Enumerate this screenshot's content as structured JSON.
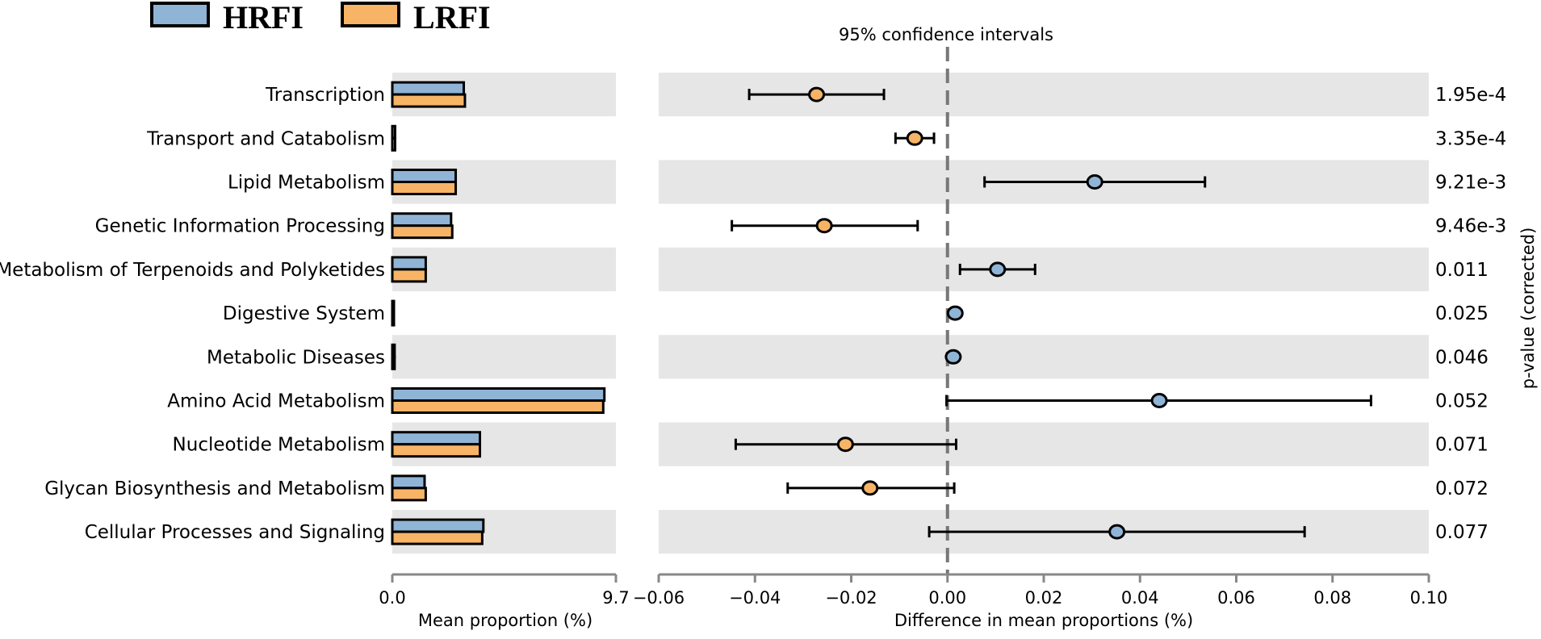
{
  "colors": {
    "hrfi": "#8fb4d6",
    "lrfi": "#f7b466",
    "band": "#e6e6e6",
    "axis": "#888888",
    "dash": "#777777",
    "stroke": "#000000"
  },
  "chart_data": {
    "type": "extended_error_bar",
    "legend": [
      {
        "name": "HRFI",
        "color": "#8fb4d6"
      },
      {
        "name": "LRFI",
        "color": "#f7b466"
      }
    ],
    "categories": [
      "Transcription",
      "Transport and Catabolism",
      "Lipid Metabolism",
      "Genetic Information Processing",
      "Metabolism of Terpenoids and Polyketides",
      "Digestive System",
      "Metabolic Diseases",
      "Amino Acid Metabolism",
      "Nucleotide Metabolism",
      "Glycan Biosynthesis and Metabolism",
      "Cellular Processes and Signaling"
    ],
    "mean_proportion": {
      "title": "Mean proportion (%)",
      "xlim": [
        0,
        9.7
      ],
      "tick_labels": [
        "0.0",
        "9.7"
      ],
      "series": [
        {
          "name": "HRFI",
          "values": [
            3.1,
            0.12,
            2.75,
            2.55,
            1.45,
            0.05,
            0.1,
            9.2,
            3.8,
            1.4,
            3.95
          ]
        },
        {
          "name": "LRFI",
          "values": [
            3.15,
            0.12,
            2.75,
            2.6,
            1.45,
            0.05,
            0.1,
            9.15,
            3.8,
            1.45,
            3.9
          ]
        }
      ]
    },
    "difference": {
      "title": "Difference in mean proportions (%)",
      "header": "95% confidence intervals",
      "xlim": [
        -0.06,
        0.1
      ],
      "ticks": [
        -0.06,
        -0.04,
        -0.02,
        0.0,
        0.02,
        0.04,
        0.06,
        0.08,
        0.1
      ],
      "tick_labels": [
        "−0.06",
        "−0.04",
        "−0.02",
        "0.00",
        "0.02",
        "0.04",
        "0.06",
        "0.08",
        "0.10"
      ],
      "points": [
        {
          "diff": -0.0272,
          "lo": -0.0412,
          "hi": -0.0132,
          "group": "LRFI"
        },
        {
          "diff": -0.0068,
          "lo": -0.0108,
          "hi": -0.0028,
          "group": "LRFI"
        },
        {
          "diff": 0.0306,
          "lo": 0.0077,
          "hi": 0.0535,
          "group": "HRFI"
        },
        {
          "diff": -0.0256,
          "lo": -0.0448,
          "hi": -0.0062,
          "group": "LRFI"
        },
        {
          "diff": 0.0104,
          "lo": 0.0026,
          "hi": 0.0182,
          "group": "HRFI"
        },
        {
          "diff": 0.0016,
          "lo": 0.0008,
          "hi": 0.0024,
          "group": "HRFI"
        },
        {
          "diff": 0.0012,
          "lo": 0.0004,
          "hi": 0.002,
          "group": "HRFI"
        },
        {
          "diff": 0.044,
          "lo": -0.0002,
          "hi": 0.088,
          "group": "HRFI"
        },
        {
          "diff": -0.0212,
          "lo": -0.044,
          "hi": 0.0018,
          "group": "LRFI"
        },
        {
          "diff": -0.0161,
          "lo": -0.0332,
          "hi": 0.0014,
          "group": "LRFI"
        },
        {
          "diff": 0.0352,
          "lo": -0.0038,
          "hi": 0.0742,
          "group": "HRFI"
        }
      ]
    },
    "pvalues": {
      "title": "p-value (corrected)",
      "values": [
        "1.95e-4",
        "3.35e-4",
        "9.21e-3",
        "9.46e-3",
        "0.011",
        "0.025",
        "0.046",
        "0.052",
        "0.071",
        "0.072",
        "0.077"
      ]
    }
  }
}
